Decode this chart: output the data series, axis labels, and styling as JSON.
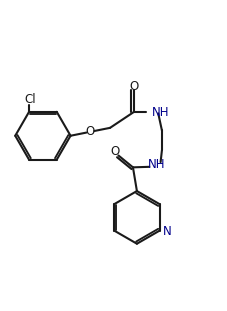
{
  "bg_color": "#ffffff",
  "line_color": "#1a1a1a",
  "heteroatom_color": "#00008B",
  "lw": 1.5,
  "fs": 8.5,
  "xlim": [
    0,
    10
  ],
  "ylim": [
    0,
    13.6
  ]
}
